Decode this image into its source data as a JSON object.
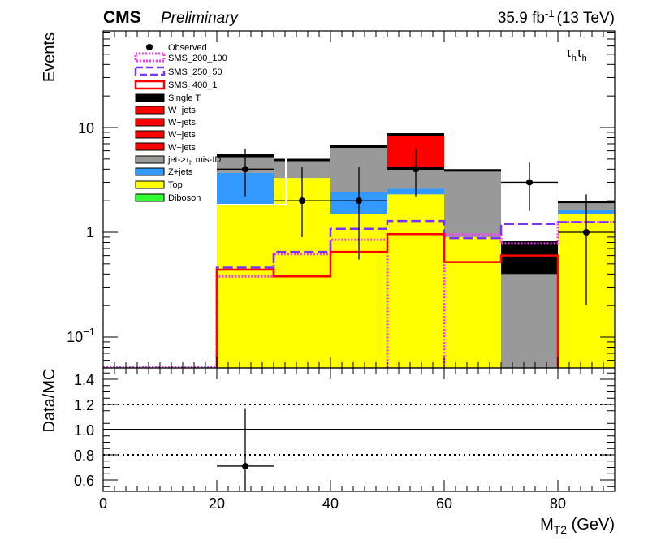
{
  "header": {
    "experiment": "CMS",
    "status": "Preliminary",
    "lumi_value": "35.9 fb",
    "lumi_exp": "-1",
    "energy": "(13 TeV)",
    "channel_tau": "τ",
    "channel_sub": "h"
  },
  "colors": {
    "Top": "#ffff00",
    "Z+jets": "#3399ff",
    "jet->tau_h mis-ID": "#999999",
    "W+jets": "#ff0000",
    "Single T": "#000000",
    "Diboson": "#33ff33",
    "SMS_200_100": "#ff33ff",
    "SMS_250_50": "#7733ff",
    "SMS_400_1": "#ff0000"
  },
  "legend": {
    "observed": "Observed",
    "sms_200_100": "SMS_200_100",
    "sms_250_50": "SMS_250_50",
    "sms_400_1": "SMS_400_1",
    "single_t": "Single T",
    "wjets_1": "W+jets",
    "wjets_2": "W+jets",
    "wjets_3": "W+jets",
    "wjets_4": "W+jets",
    "misid_pre": "jet->τ",
    "misid_sub": "h",
    "misid_post": " mis-ID",
    "zjets": "Z+jets",
    "top": "Top",
    "diboson": "Diboson"
  },
  "chart_data": [
    {
      "type": "bar",
      "subtype": "stacked-histogram",
      "x_bin_edges": [
        0,
        10,
        20,
        30,
        40,
        50,
        60,
        70,
        80,
        90
      ],
      "xlim": [
        0,
        90
      ],
      "ylim": [
        0.05,
        100
      ],
      "yscale": "log",
      "ylabel": "Events",
      "y_ticks": [
        "10",
        "1"
      ],
      "y_tick_exp": {
        "base": "10",
        "exp": "−1"
      },
      "stacks_bottom_to_top": [
        {
          "name": "Top",
          "values": [
            0,
            0,
            1.8,
            3.3,
            1.5,
            2.3,
            0.9,
            0,
            1.5
          ]
        },
        {
          "name": "Z+jets",
          "values": [
            0,
            0,
            1.9,
            0,
            0.9,
            0.3,
            0,
            0,
            0.15
          ]
        },
        {
          "name": "jet->tau_h mis-ID",
          "values": [
            0,
            0,
            1.5,
            1.6,
            4.0,
            1.4,
            2.9,
            0.4,
            0.3
          ]
        },
        {
          "name": "Single T",
          "values": [
            0,
            0,
            0.3,
            0,
            0.2,
            0.2,
            0.1,
            0.4,
            0
          ]
        },
        {
          "name": "W+jets",
          "values": [
            0,
            0,
            0,
            0,
            0,
            4.4,
            0,
            0,
            0
          ]
        }
      ],
      "signals": [
        {
          "name": "SMS_200_100",
          "values": [
            0.05,
            0.05,
            0.38,
            0.62,
            0.85,
            0.05,
            0.95,
            0.78,
            1.25
          ]
        },
        {
          "name": "SMS_250_50",
          "values": [
            0.05,
            0.05,
            0.46,
            0.65,
            1.08,
            1.28,
            0.88,
            1.2,
            1.25
          ]
        },
        {
          "name": "SMS_400_1",
          "values": [
            0.05,
            0.05,
            0.44,
            0.38,
            0.65,
            0.96,
            0.52,
            0.6,
            0.05
          ]
        }
      ],
      "observed": {
        "name": "Observed",
        "x": [
          25,
          35,
          45,
          55,
          75,
          85
        ],
        "y": [
          4,
          2,
          2,
          4,
          3,
          1
        ],
        "y_low": [
          2.2,
          0.9,
          0.55,
          2.2,
          1.6,
          0.2
        ],
        "y_high": [
          6.3,
          4.2,
          4.2,
          6.3,
          4.7,
          2.3
        ]
      }
    },
    {
      "type": "scatter",
      "subtype": "ratio",
      "ylabel": "Data/MC",
      "xlabel_main": "M",
      "xlabel_sub": "T2",
      "xlabel_unit": " (GeV)",
      "xlim": [
        0,
        90
      ],
      "ylim": [
        0.5,
        1.5
      ],
      "x_ticks": [
        "0",
        "20",
        "40",
        "60",
        "80"
      ],
      "y_ticks": [
        "1.4",
        "1.2",
        "1.0",
        "0.8",
        "0.6"
      ],
      "reference_lines": [
        0.8,
        1.0,
        1.2
      ],
      "points": [
        {
          "x": 25,
          "y": 0.71,
          "y_low": 0.3,
          "y_high": 1.17,
          "x_err": 5
        }
      ]
    }
  ]
}
